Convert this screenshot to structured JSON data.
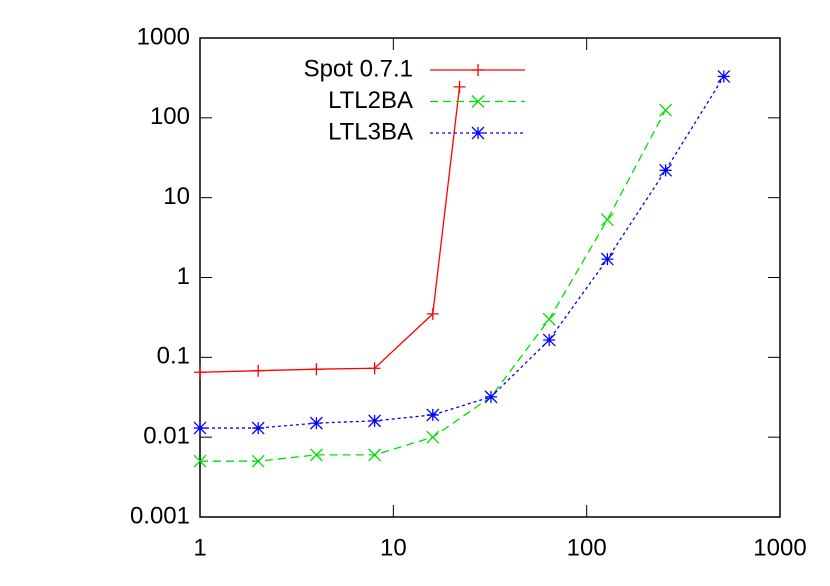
{
  "chart_data": {
    "type": "line",
    "log_x": true,
    "log_y": true,
    "legend": "top left",
    "xlim": [
      1,
      1000
    ],
    "ylim": [
      0.001,
      1000
    ],
    "xticks": [
      1,
      10,
      100,
      1000
    ],
    "yticks": [
      0.001,
      0.01,
      0.1,
      1,
      10,
      100,
      1000
    ],
    "series": [
      {
        "name": "Spot 0.7.1",
        "color": "#ff0000",
        "marker": "plus",
        "dash": "none",
        "x": [
          1,
          2,
          4,
          8,
          16,
          22
        ],
        "values": [
          0.065,
          0.068,
          0.071,
          0.073,
          0.35,
          244
        ]
      },
      {
        "name": "LTL2BA",
        "color": "#00e000",
        "marker": "cross",
        "dash": "8,5",
        "x": [
          1,
          2,
          4,
          8,
          16,
          32,
          64,
          128,
          256
        ],
        "values": [
          0.005,
          0.005,
          0.006,
          0.006,
          0.01,
          0.032,
          0.3,
          5.3,
          125
        ]
      },
      {
        "name": "LTL3BA",
        "color": "#0000ff",
        "marker": "star",
        "dash": "3,3",
        "x": [
          1,
          2,
          4,
          8,
          16,
          32,
          64,
          128,
          256,
          512
        ],
        "values": [
          0.013,
          0.013,
          0.015,
          0.016,
          0.019,
          0.032,
          0.165,
          1.7,
          22,
          330
        ]
      }
    ]
  }
}
